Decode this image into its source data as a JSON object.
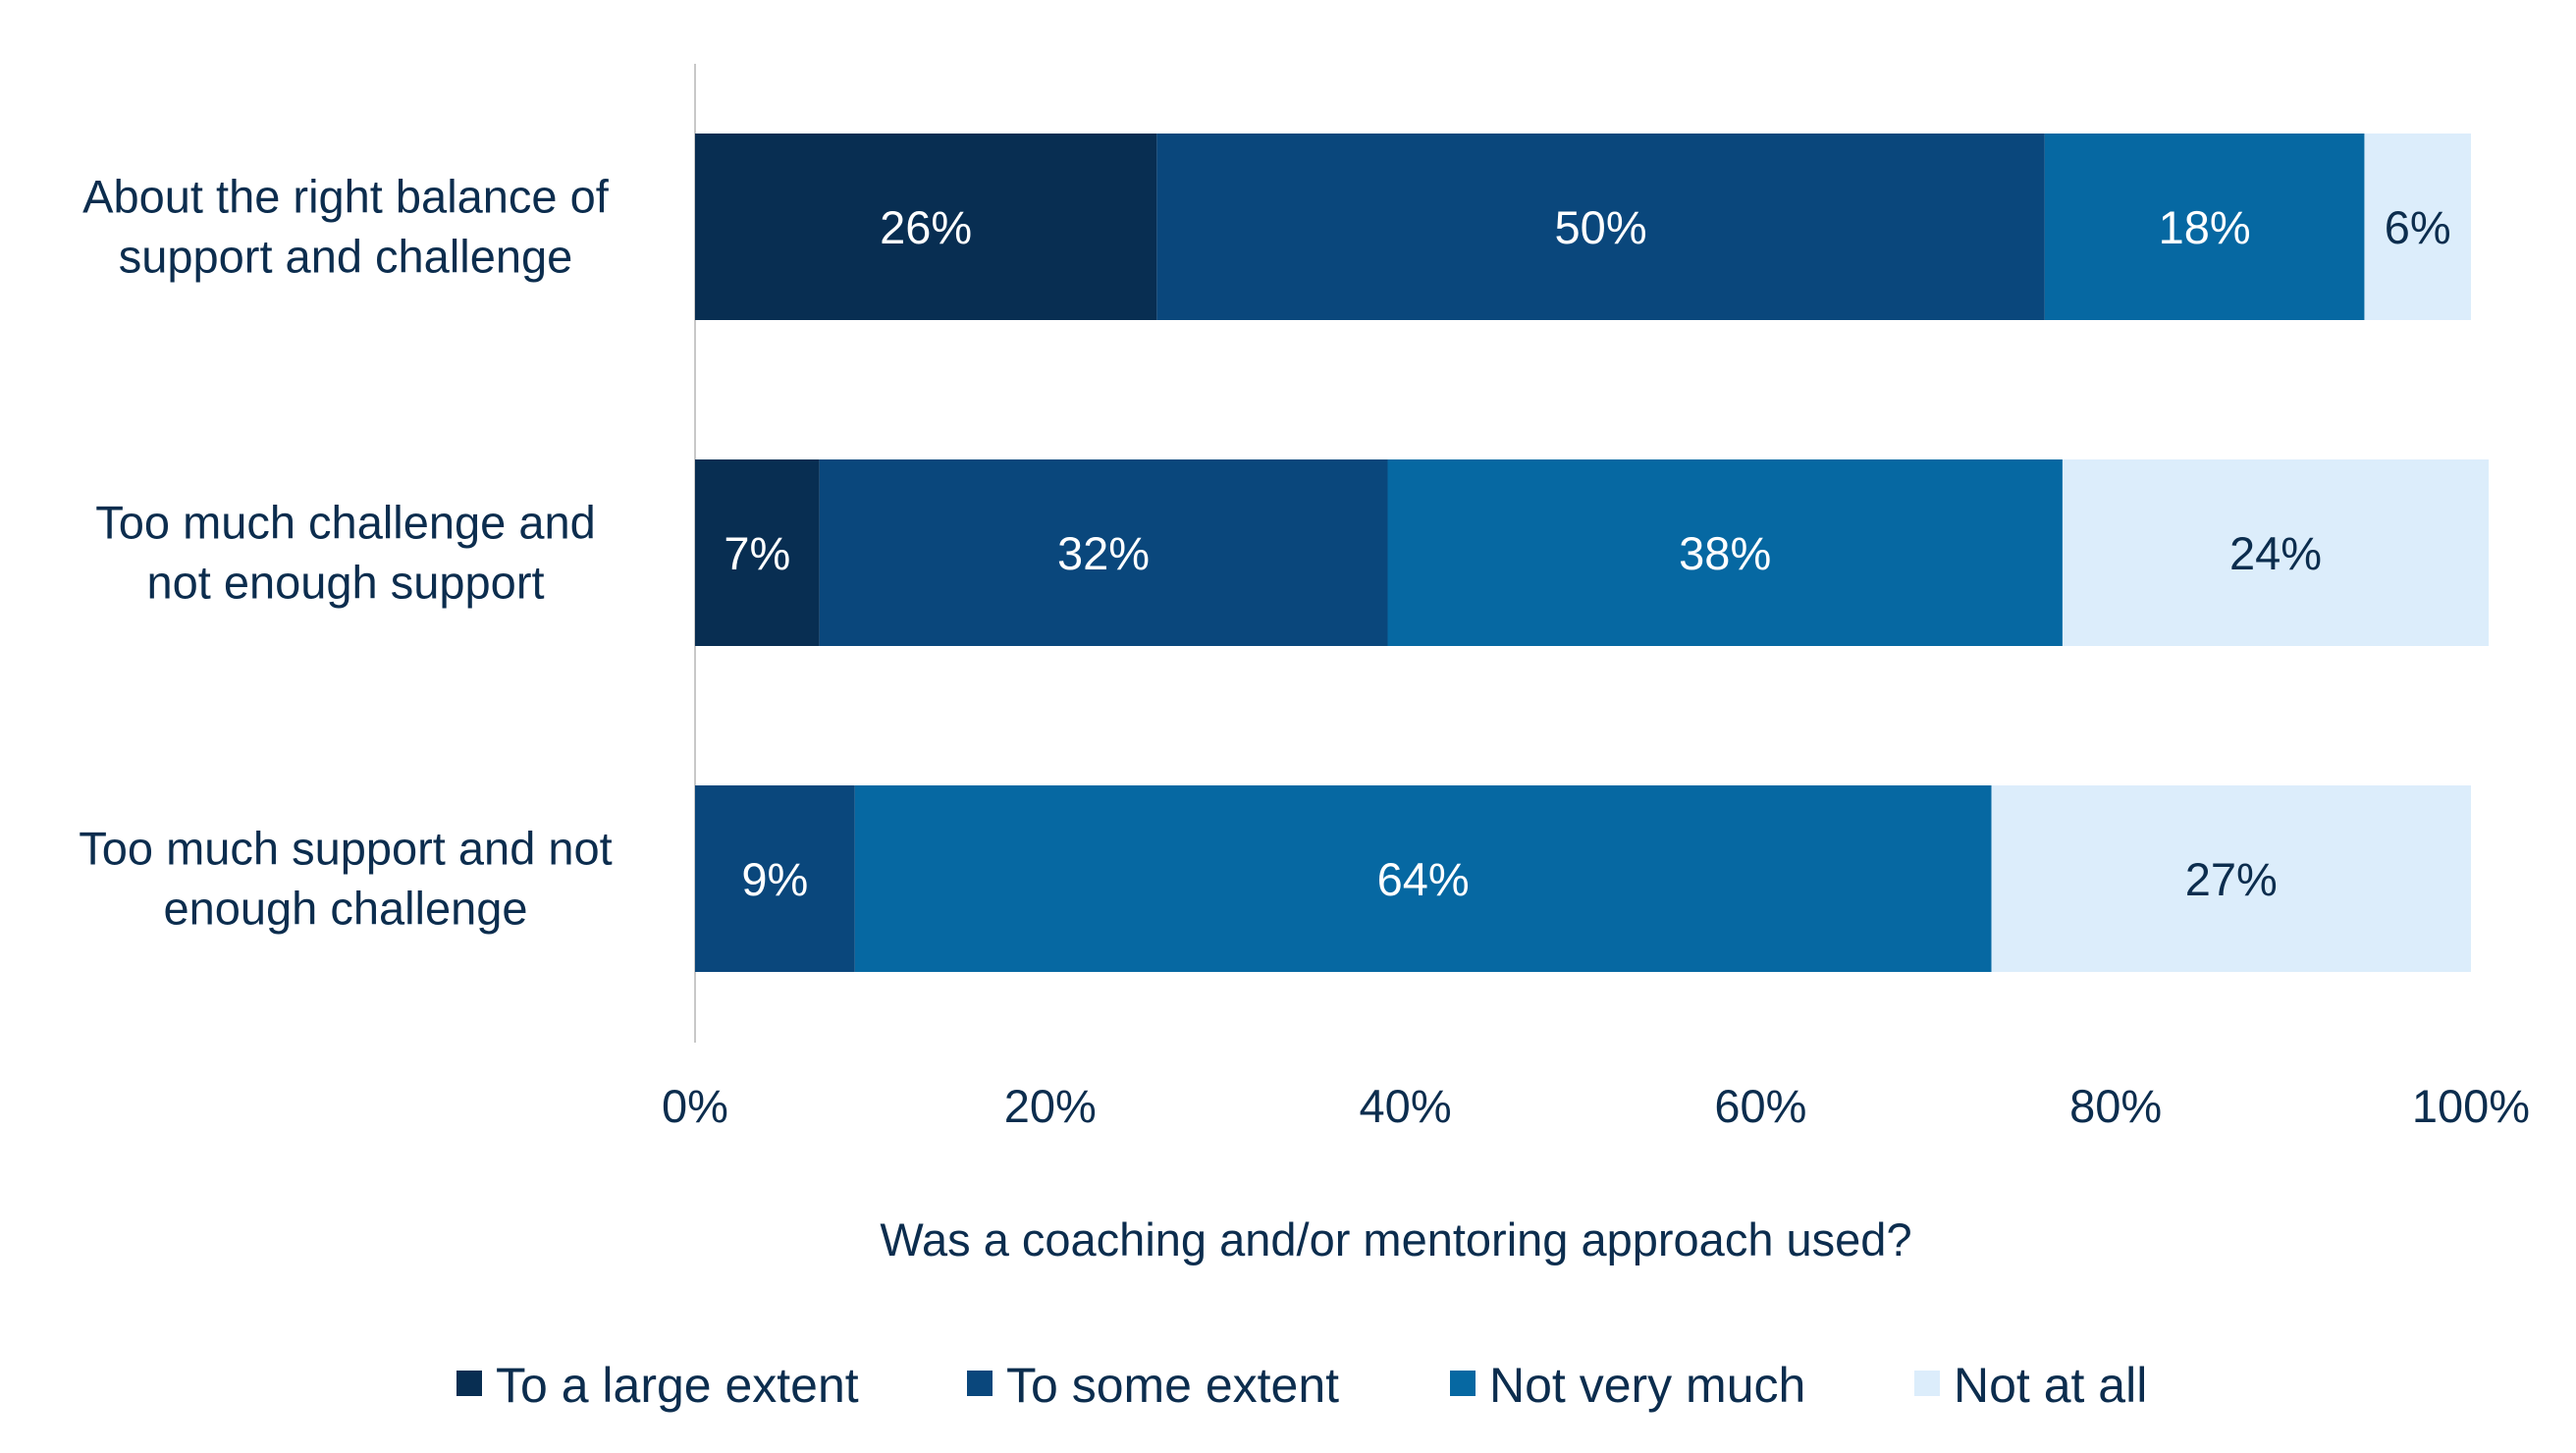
{
  "chart_data": {
    "type": "bar",
    "orientation": "horizontal",
    "stacked": true,
    "title": "",
    "xlabel": "Was a coaching and/or mentoring approach used?",
    "ylabel": "",
    "xlim": [
      0,
      100
    ],
    "ticks": [
      "0%",
      "20%",
      "40%",
      "60%",
      "80%",
      "100%"
    ],
    "tick_values": [
      0,
      20,
      40,
      60,
      80,
      100
    ],
    "grid": false,
    "legend_position": "bottom",
    "categories": [
      [
        "About the right balance of",
        "support and challenge"
      ],
      [
        "Too much challenge and",
        "not enough support"
      ],
      [
        "Too much support and not",
        "enough challenge"
      ]
    ],
    "series": [
      {
        "name": "To a large extent",
        "color": "#082e52",
        "label_color": "#ffffff",
        "values": [
          26,
          7,
          0
        ]
      },
      {
        "name": "To some extent",
        "color": "#0a477c",
        "label_color": "#ffffff",
        "values": [
          50,
          32,
          9
        ]
      },
      {
        "name": "Not very much",
        "color": "#0668a2",
        "label_color": "#ffffff",
        "values": [
          18,
          38,
          64
        ]
      },
      {
        "name": "Not at all",
        "color": "#dcedfb",
        "label_color": "#0c2d4e",
        "values": [
          6,
          24,
          27
        ]
      }
    ],
    "data_labels": [
      [
        "26%",
        "50%",
        "18%",
        "6%"
      ],
      [
        "7%",
        "32%",
        "38%",
        "24%"
      ],
      [
        "",
        "9%",
        "64%",
        "27%"
      ]
    ]
  }
}
